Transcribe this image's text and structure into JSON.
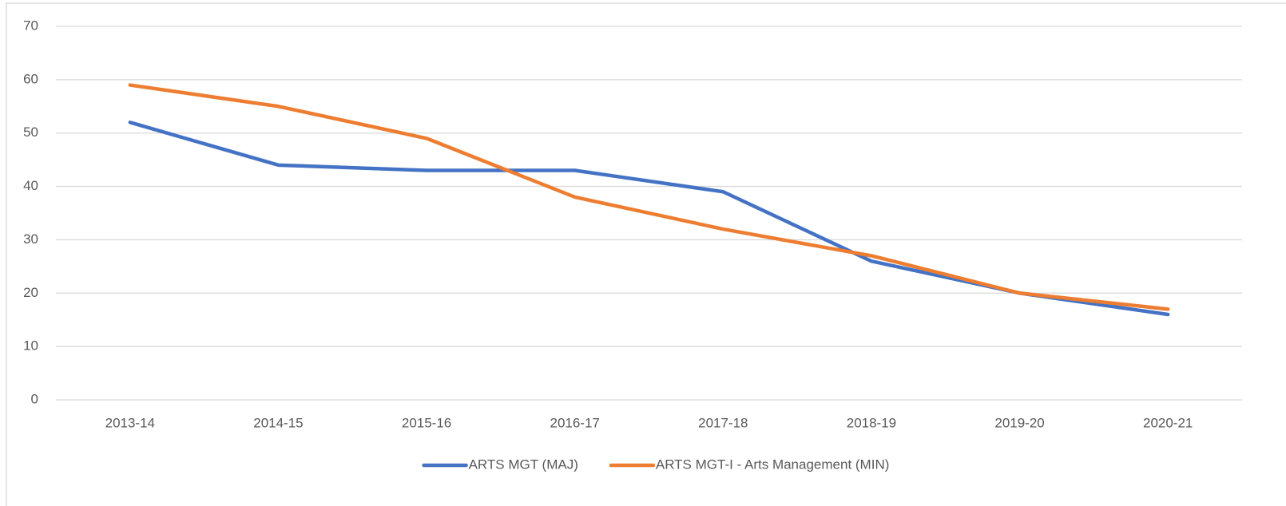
{
  "chart_data": {
    "type": "line",
    "categories": [
      "2013-14",
      "2014-15",
      "2015-16",
      "2016-17",
      "2017-18",
      "2018-19",
      "2019-20",
      "2020-21"
    ],
    "series": [
      {
        "name": "ARTS MGT (MAJ)",
        "color": "#4472c4",
        "values": [
          52,
          44,
          43,
          43,
          39,
          26,
          20,
          16
        ]
      },
      {
        "name": "ARTS MGT-I - Arts Management (MIN)",
        "color": "#ed7d31",
        "values": [
          59,
          55,
          49,
          38,
          32,
          27,
          20,
          17
        ]
      }
    ],
    "ylim": [
      0,
      70
    ],
    "yticks": [
      0,
      10,
      20,
      30,
      40,
      50,
      60,
      70
    ],
    "grid": true,
    "legend": "bottom"
  }
}
